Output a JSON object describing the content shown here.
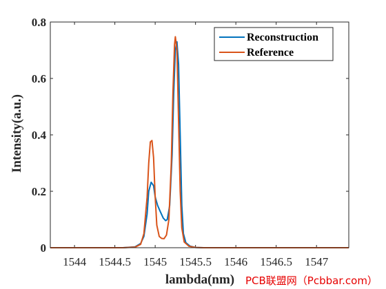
{
  "chart_data": {
    "type": "line",
    "title": "",
    "xlabel": "lambda(nm)",
    "ylabel": "Intensity(a.u.)",
    "xlim": [
      1543.7,
      1547.4
    ],
    "ylim": [
      0,
      0.8
    ],
    "xticks": [
      1544,
      1544.5,
      1545,
      1545.5,
      1546,
      1546.5,
      1547
    ],
    "xtick_labels": [
      "1544",
      "1544.5",
      "1545",
      "1545.5",
      "1546",
      "1546.5",
      "1547"
    ],
    "yticks": [
      0,
      0.2,
      0.4,
      0.6,
      0.8
    ],
    "ytick_labels": [
      "0",
      "0.2",
      "0.4",
      "0.6",
      "0.8"
    ],
    "grid": false,
    "legend_position": "top-right",
    "series": [
      {
        "name": "Reconstruction",
        "color": "#0072BD",
        "points": [
          [
            1543.7,
            0.0
          ],
          [
            1544.6,
            0.0
          ],
          [
            1544.75,
            0.003
          ],
          [
            1544.82,
            0.015
          ],
          [
            1544.86,
            0.04
          ],
          [
            1544.9,
            0.12
          ],
          [
            1544.92,
            0.2
          ],
          [
            1544.95,
            0.232
          ],
          [
            1544.98,
            0.22
          ],
          [
            1545.0,
            0.18
          ],
          [
            1545.03,
            0.15
          ],
          [
            1545.06,
            0.13
          ],
          [
            1545.1,
            0.105
          ],
          [
            1545.13,
            0.096
          ],
          [
            1545.15,
            0.1
          ],
          [
            1545.18,
            0.15
          ],
          [
            1545.21,
            0.33
          ],
          [
            1545.23,
            0.55
          ],
          [
            1545.25,
            0.7
          ],
          [
            1545.27,
            0.73
          ],
          [
            1545.29,
            0.65
          ],
          [
            1545.31,
            0.4
          ],
          [
            1545.33,
            0.15
          ],
          [
            1545.35,
            0.05
          ],
          [
            1545.38,
            0.018
          ],
          [
            1545.43,
            0.006
          ],
          [
            1545.5,
            0.001
          ],
          [
            1545.6,
            0.0
          ],
          [
            1547.4,
            0.0
          ]
        ]
      },
      {
        "name": "Reference",
        "color": "#D95319",
        "points": [
          [
            1543.7,
            0.0
          ],
          [
            1544.6,
            0.0
          ],
          [
            1544.75,
            0.002
          ],
          [
            1544.82,
            0.012
          ],
          [
            1544.86,
            0.05
          ],
          [
            1544.9,
            0.18
          ],
          [
            1544.92,
            0.3
          ],
          [
            1544.94,
            0.375
          ],
          [
            1544.96,
            0.38
          ],
          [
            1544.98,
            0.32
          ],
          [
            1545.0,
            0.18
          ],
          [
            1545.02,
            0.08
          ],
          [
            1545.05,
            0.04
          ],
          [
            1545.08,
            0.033
          ],
          [
            1545.11,
            0.032
          ],
          [
            1545.14,
            0.045
          ],
          [
            1545.17,
            0.1
          ],
          [
            1545.2,
            0.3
          ],
          [
            1545.22,
            0.55
          ],
          [
            1545.24,
            0.72
          ],
          [
            1545.25,
            0.748
          ],
          [
            1545.27,
            0.7
          ],
          [
            1545.29,
            0.45
          ],
          [
            1545.31,
            0.2
          ],
          [
            1545.33,
            0.07
          ],
          [
            1545.36,
            0.02
          ],
          [
            1545.42,
            0.005
          ],
          [
            1545.5,
            0.001
          ],
          [
            1545.6,
            0.0
          ],
          [
            1547.4,
            0.0
          ]
        ]
      }
    ]
  },
  "watermark": "PCB联盟网（Pcbbar.com）"
}
